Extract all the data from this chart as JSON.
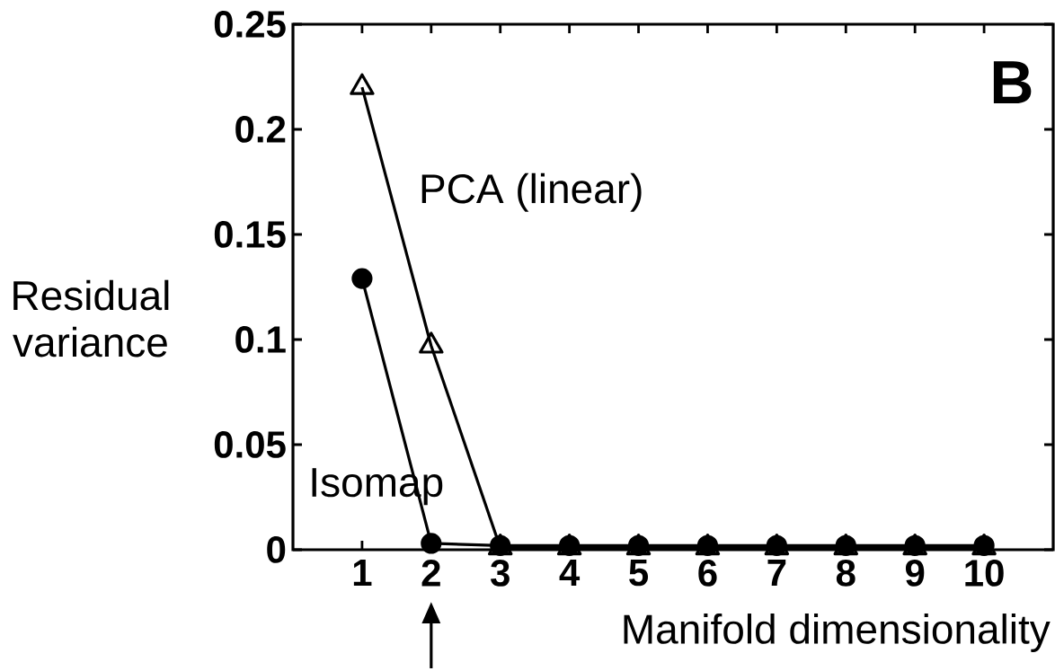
{
  "chart_data": {
    "type": "line",
    "xlabel": "Manifold dimensionality",
    "ylabel": "Residual variance",
    "x": [
      1,
      2,
      3,
      4,
      5,
      6,
      7,
      8,
      9,
      10
    ],
    "series": [
      {
        "name": "Isomap",
        "color": "#000000",
        "marker": "circle",
        "values": [
          0.129,
          0.003,
          0.002,
          0.002,
          0.002,
          0.002,
          0.002,
          0.002,
          0.002,
          0.002
        ]
      },
      {
        "name": "PCA (linear)",
        "color": "#000000",
        "marker": "triangle",
        "values": [
          0.22,
          0.097,
          0.001,
          0.001,
          0.001,
          0.001,
          0.001,
          0.001,
          0.001,
          0.001
        ]
      }
    ],
    "xlim": [
      0,
      11
    ],
    "ylim": [
      0,
      0.25
    ],
    "xticks": [
      1,
      2,
      3,
      4,
      5,
      6,
      7,
      8,
      9,
      10
    ],
    "yticks": [
      0,
      0.05,
      0.1,
      0.15,
      0.2,
      0.25
    ],
    "annotations": [
      "B"
    ],
    "grid": false
  }
}
